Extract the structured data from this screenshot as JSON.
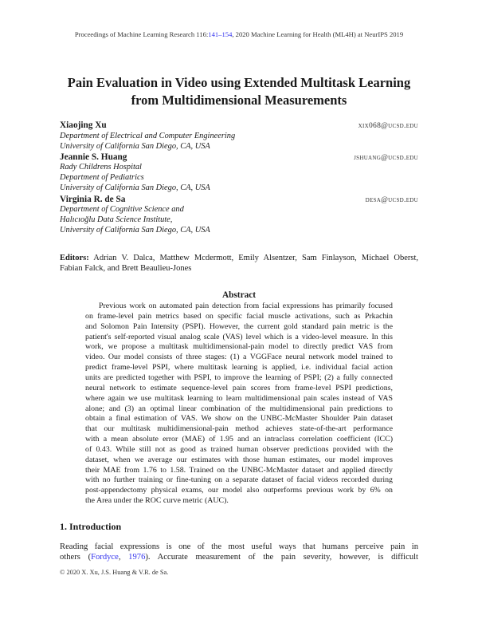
{
  "header": {
    "prefix": "Proceedings of Machine Learning Research 116:",
    "pages_link": "141–154",
    "suffix": ", 2020 Machine Learning for Health (ML4H) at NeurIPS 2019"
  },
  "title": [
    "Pain Evaluation in Video using Extended Multitask Learning",
    "from Multidimensional Measurements"
  ],
  "authors": [
    {
      "name": "Xiaojing Xu",
      "email": "xix068@ucsd.edu",
      "affiliation": [
        "Department of Electrical and Computer Engineering",
        "University of California San Diego, CA, USA"
      ]
    },
    {
      "name": "Jeannie S. Huang",
      "email": "jshuang@ucsd.edu",
      "affiliation": [
        "Rady Childrens Hospital",
        "Department of Pediatrics",
        "University of California San Diego, CA, USA"
      ]
    },
    {
      "name": "Virginia R. de Sa",
      "email": "desa@ucsd.edu",
      "affiliation": [
        "Department of Cognitive Science and",
        "Halıcıoğlu Data Science Institute,",
        "University of California San Diego, CA, USA"
      ]
    }
  ],
  "editors": {
    "label": "Editors:",
    "line1": "Adrian V. Dalca, Matthew Mcdermott, Emily Alsentzer, Sam Finlayson, Michael Oberst,",
    "line2": "Fabian Falck, and Brett Beaulieu-Jones"
  },
  "abstract": {
    "heading": "Abstract",
    "lines": [
      "Previous work on automated pain detection from facial expressions has primarily focused",
      "on frame-level pain metrics based on specific facial muscle activations, such as Prkachin",
      "and Solomon Pain Intensity (PSPI). However, the current gold standard pain metric is the",
      "patient's self-reported visual analog scale (VAS) level which is a video-level measure. In this",
      "work, we propose a multitask multidimensional-pain model to directly predict VAS from",
      "video. Our model consists of three stages: (1) a VGGFace neural network model trained to",
      "predict frame-level PSPI, where multitask learning is applied, i.e. individual facial action",
      "units are predicted together with PSPI, to improve the learning of PSPI; (2) a fully connected",
      "neural network to estimate sequence-level pain scores from frame-level PSPI predictions,",
      "where again we use multitask learning to learn multidimensional pain scales instead of VAS",
      "alone; and (3) an optimal linear combination of the multidimensional pain predictions to",
      "obtain a final estimation of VAS. We show on the UNBC-McMaster Shoulder Pain dataset",
      "that our multitask multidimensional-pain method achieves state-of-the-art performance",
      "with a mean absolute error (MAE) of 1.95 and an intraclass correlation coefficient (ICC)",
      "of 0.43. While still not as good as trained human observer predictions provided with the",
      "dataset, when we average our estimates with those human estimates, our model improves",
      "their MAE from 1.76 to 1.58. Trained on the UNBC-McMaster dataset and applied directly",
      "with no further training or fine-tuning on a separate dataset of facial videos recorded during",
      "post-appendectomy physical exams, our model also outperforms previous work by 6% on",
      "the Area under the ROC curve metric (AUC)."
    ]
  },
  "introduction": {
    "heading": "1.  Introduction",
    "line1": "Reading facial expressions is one of the most useful ways that humans perceive pain in",
    "line2_pre": "others (",
    "cite_author": "Fordyce",
    "cite_sep": ", ",
    "cite_year": "1976",
    "line2_post": ").  Accurate measurement of the pain severity, however, is difficult"
  },
  "footer": "© 2020 X. Xu, J.S. Huang & V.R. de Sa.",
  "colors": {
    "link": "#3333ee",
    "text": "#1a1a1a"
  }
}
